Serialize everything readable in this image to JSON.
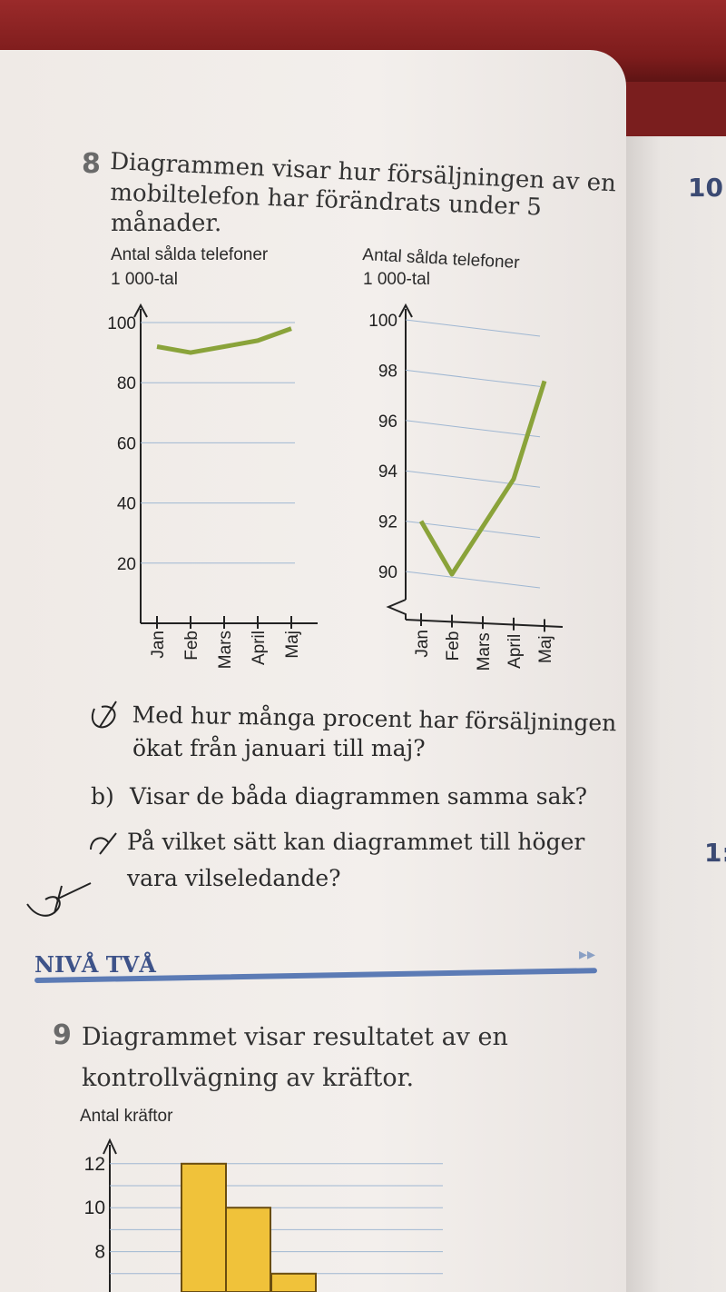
{
  "side_number_top": "10",
  "side_number_mid": "1:",
  "question8": {
    "number": "8",
    "line1": "Diagrammen visar hur försäljningen av en",
    "line2": "mobiltelefon har förändrats under 5",
    "line3": "månader."
  },
  "sub_a": {
    "marker": "a)",
    "line1": "Med hur många procent har försäljningen",
    "line2": "ökat från januari till maj?"
  },
  "sub_b": {
    "marker": "b)",
    "line1": "Visar de båda diagrammen samma sak?"
  },
  "sub_c": {
    "marker": "c)",
    "line1": "På vilket sätt kan diagrammet till höger",
    "line2": "vara vilseledande?"
  },
  "level": {
    "label": "NIVÅ TVÅ",
    "arrow": "▸▸"
  },
  "question9": {
    "number": "9",
    "line1": "Diagrammet visar resultatet av en",
    "line2": "kontrollvägning av kräftor."
  },
  "colors": {
    "line": "#8aa33a",
    "bar": "#f0c23a",
    "grid": "#9fb7d2",
    "level": "#3e5389"
  },
  "chart_data": [
    {
      "type": "line",
      "ylabel": "Antal sålda telefoner",
      "ylabel_unit": "1 000-tal",
      "categories": [
        "Jan",
        "Feb",
        "Mars",
        "April",
        "Maj"
      ],
      "series": [
        {
          "values": [
            92,
            90,
            92,
            94,
            98
          ]
        }
      ],
      "ylim": [
        0,
        100
      ],
      "yticks": [
        "20",
        "40",
        "60",
        "80",
        "100"
      ],
      "grid": true
    },
    {
      "type": "line",
      "ylabel": "Antal sålda telefoner",
      "ylabel_unit": "1 000-tal",
      "categories": [
        "Jan",
        "Feb",
        "Mars",
        "April",
        "Maj"
      ],
      "series": [
        {
          "values": [
            92,
            90,
            92,
            94,
            98
          ]
        }
      ],
      "ylim": [
        89,
        100
      ],
      "broken_axis": true,
      "yticks": [
        "90",
        "92",
        "94",
        "96",
        "98",
        "100"
      ],
      "grid": true
    },
    {
      "type": "bar",
      "ylabel": "Antal kräftor",
      "yticks": [
        "8",
        "10",
        "12"
      ],
      "values": [
        12,
        10,
        7
      ],
      "grid": true
    }
  ]
}
